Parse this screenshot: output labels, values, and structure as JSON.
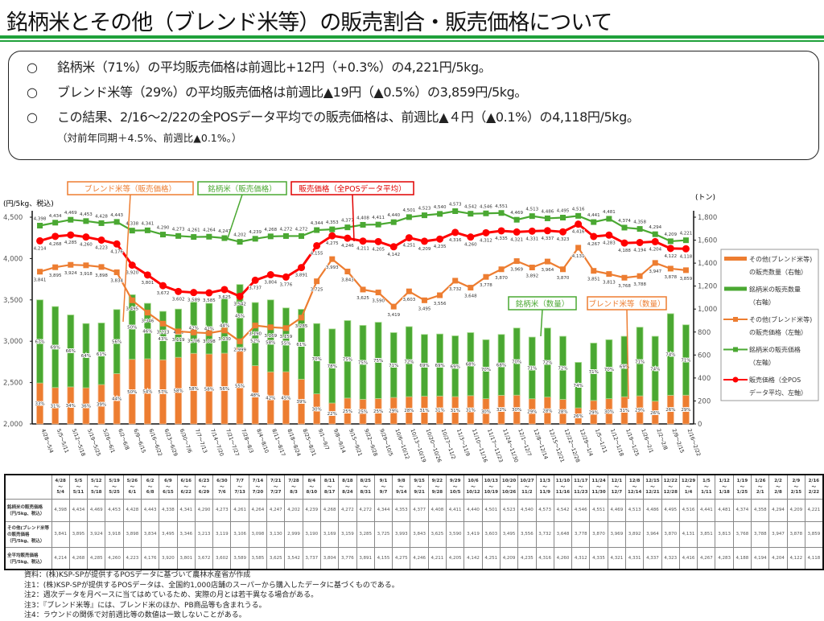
{
  "title": "銘柄米とその他（ブレンド米等）の販売割合・販売価格について",
  "summary": {
    "bullet": "○",
    "lines": [
      "銘柄米（71%）の平均販売価格は前週比+12円（+0.3%）の4,221円/5kg。",
      "ブレンド米等（29%）の平均販売価格は前週比▲19円（▲0.5%）の3,859円/5kg。",
      "この結果、2/16～2/22の全POSデータ平均での販売価格は、前週比▲４円（▲0.1%）の4,118円/5kg。"
    ],
    "sub": "（対前年同期＋4.5%、前週比▲0.1%。）"
  },
  "colors": {
    "brand": "#4aa832",
    "blend": "#ed7d31",
    "total": "#ff0000",
    "rule": "#1fa13b"
  },
  "chart_data": {
    "type": "bar+line",
    "left_axis": {
      "label": "(円/5kg、税込)",
      "ylim": [
        2000,
        4500
      ],
      "ticks": [
        "2,000",
        "2,500",
        "3,000",
        "3,500",
        "4,000",
        "4,500"
      ]
    },
    "right_axis": {
      "label": "(トン)",
      "ylim": [
        0,
        1800
      ],
      "ticks": [
        "0",
        "200",
        "400",
        "600",
        "800",
        "1,000",
        "1,200",
        "1,400",
        "1,600",
        "1,800"
      ]
    },
    "categories": [
      "4/28～5/4",
      "5/5～5/11",
      "5/12～5/18",
      "5/19～5/25",
      "5/26～6/1",
      "6/2～6/8",
      "6/9～6/15",
      "6/16～6/22",
      "6/23～6/29",
      "6/30～7/6",
      "7/7～7/13",
      "7/14～7/20",
      "7/21～7/27",
      "7/28～8/3",
      "8/4～8/10",
      "8/11～8/17",
      "8/18～8/24",
      "8/25～8/31",
      "9/1～9/7",
      "9/8～9/14",
      "9/15～9/21",
      "9/22～9/28",
      "9/29～10/5",
      "10/6～10/12",
      "10/13～10/19",
      "10/20～10/26",
      "10/27～11/2",
      "11/3～11/9",
      "11/10～11/16",
      "11/17～11/23",
      "11/24～11/30",
      "12/1～12/7",
      "12/8～12/14",
      "12/15～12/21",
      "12/22～12/28",
      "12/29～1/4",
      "1/5～1/11",
      "1/12～1/18",
      "1/19～1/25",
      "1/26～2/1",
      "2/2～2/8",
      "2/9～2/15",
      "2/16～2/22"
    ],
    "brand_price": [
      4398,
      4434,
      4469,
      4453,
      4428,
      4443,
      4338,
      4341,
      4290,
      4273,
      4261,
      4264,
      4247,
      4202,
      4239,
      4268,
      4272,
      4272,
      4344,
      4353,
      4377,
      4408,
      4411,
      4440,
      4501,
      4523,
      4540,
      4573,
      4542,
      4546,
      4551,
      4469,
      4513,
      4486,
      4495,
      4516,
      4441,
      4481,
      4374,
      4358,
      4294,
      4209,
      4221
    ],
    "blend_price": [
      3841,
      3895,
      3924,
      3918,
      3898,
      3834,
      3495,
      3346,
      3213,
      3119,
      3106,
      3098,
      3130,
      2999,
      3190,
      3169,
      3159,
      3285,
      3725,
      3993,
      3843,
      3625,
      3590,
      3419,
      3603,
      3495,
      3556,
      3732,
      3648,
      3778,
      3870,
      3969,
      3892,
      3964,
      3870,
      4131,
      3851,
      3813,
      3768,
      3788,
      3947,
      3878,
      3859
    ],
    "total_price": [
      4214,
      4268,
      4285,
      4260,
      4223,
      4176,
      3920,
      3801,
      3672,
      3602,
      3589,
      3585,
      3625,
      3542,
      3737,
      3804,
      3776,
      3891,
      4155,
      4275,
      4246,
      4211,
      4205,
      4142,
      4251,
      4209,
      4235,
      4316,
      4260,
      4312,
      4335,
      4321,
      4331,
      4337,
      4323,
      4416,
      4267,
      4283,
      4188,
      4194,
      4204,
      4122,
      4118
    ],
    "brand_share_pct": [
      67,
      69,
      66,
      64,
      61,
      56,
      50,
      46,
      43,
      42,
      42,
      42,
      44,
      45,
      52,
      58,
      55,
      61,
      70,
      78,
      75,
      75,
      75,
      71,
      72,
      69,
      69,
      69,
      68,
      70,
      68,
      70,
      71,
      72,
      72,
      74,
      71,
      70,
      69,
      71,
      74,
      74,
      71
    ],
    "blend_share_pct": [
      33,
      31,
      34,
      36,
      39,
      44,
      50,
      54,
      57,
      58,
      58,
      58,
      56,
      55,
      48,
      42,
      45,
      39,
      30,
      22,
      25,
      25,
      25,
      29,
      28,
      31,
      31,
      31,
      31,
      30,
      32,
      30,
      29,
      28,
      28,
      26,
      29,
      30,
      31,
      29,
      26,
      26,
      29
    ],
    "total_volume_t_est": [
      1080,
      1022,
      949,
      874,
      879,
      996,
      1125,
      1050,
      980,
      1000,
      1060,
      1050,
      1100,
      1214,
      1057,
      1080,
      1010,
      998,
      874,
      827,
      900,
      858,
      885,
      795,
      847,
      779,
      783,
      767,
      795,
      733,
      779,
      835,
      756,
      835,
      763,
      536,
      704,
      733,
      763,
      842,
      763,
      960,
      863
    ],
    "callouts": {
      "blend_price": "ブレンド米等（販売価格）",
      "brand_price": "銘柄米（販売価格）",
      "total_price": "販売価格（全POSデータ平均）",
      "brand_qty": "銘柄米（数量）",
      "blend_qty": "ブレンド米等（数量）"
    },
    "legend": [
      "その他(ブレンド米等)",
      "の販売数量（右軸）",
      "銘柄米の販売数量",
      "（右軸）",
      "その他(ブレンド米等)",
      "の販売価格（左軸）",
      "銘柄米の販売価格",
      "（左軸）",
      "販売価格（全POS",
      "データ平均、左軸）"
    ],
    "legend_placement": "right"
  },
  "table": {
    "row_headers": [
      "銘柄米の販売価格（円/5kg、税込）",
      "その他(ブレンド米等の販売価格（円/5kg、税込）",
      "全平均販売価格（円/5kg、税込）"
    ]
  },
  "notes": [
    "資料：(株)KSP-SPが提供するPOSデータに基づいて農林水産省が作成",
    "注1：(株)KSP-SPが提供するPOSデータは、全国約1,000店舗のスーパーから購入したデータに基づくものである。",
    "注2：週次データを月ベースに当てはめているため、実際の月とは若干異なる場合がある。",
    "注3：『ブレンド米等』には、ブレンド米のほか、PB商品等も含まれうる。",
    "注4：ラウンドの関係で対前週比等の数値は一致しないことがある。"
  ]
}
